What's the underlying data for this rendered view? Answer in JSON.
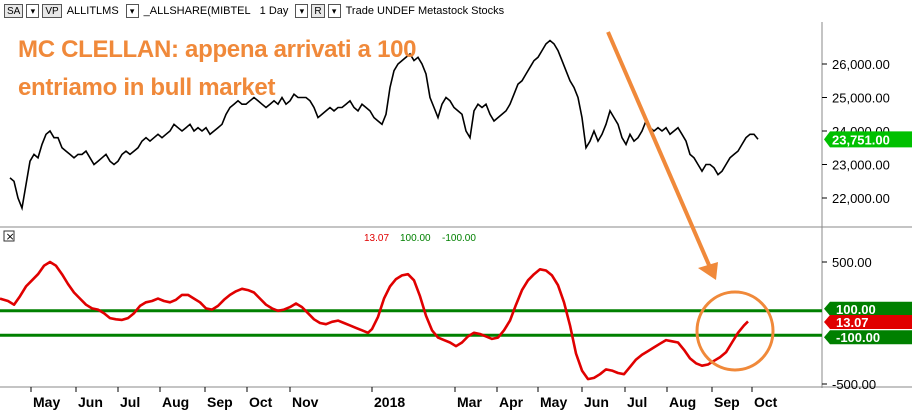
{
  "toolbar": {
    "symbol_mode": "SA",
    "vp_label": "VP",
    "symbol": "ALLITLMS",
    "series": "_ALLSHARE(MIBTEL",
    "period": "1 Day",
    "mode": "R",
    "info": "Trade  UNDEF  Metastock  Stocks"
  },
  "annotation": {
    "line1": "MC CLELLAN: appena arrivati a 100",
    "line2": "entriamo in bull market",
    "color": "#f0893a"
  },
  "price_axis": {
    "ticks": [
      "26,000.00",
      "25,000.00",
      "24,000.00",
      "23,000.00",
      "22,000.00"
    ],
    "current_label": "23,751.00",
    "current_color": "#00c000"
  },
  "osc_panel": {
    "legend": [
      "13.07",
      "100.00",
      "-100.00"
    ],
    "legend_colors": [
      "#e00000",
      "#008000",
      "#008000"
    ],
    "ticks": [
      "500.00",
      "-500.00"
    ],
    "labels": {
      "upper": "100.00",
      "current": "13.07",
      "lower": "-100.00"
    },
    "label_colors": {
      "upper": "#008000",
      "current": "#e00000",
      "lower": "#008000"
    },
    "close_glyph": "×"
  },
  "time_axis": {
    "labels": [
      "May",
      "Jun",
      "Jul",
      "Aug",
      "Sep",
      "Oct",
      "Nov",
      "2018",
      "Mar",
      "Apr",
      "May",
      "Jun",
      "Jul",
      "Aug",
      "Sep",
      "Oct"
    ]
  },
  "chart_data": {
    "type": "line",
    "title": "",
    "price_series": {
      "ylim": [
        21500,
        27000
      ],
      "points": [
        [
          0,
          22600
        ],
        [
          4,
          22500
        ],
        [
          8,
          22000
        ],
        [
          12,
          21700
        ],
        [
          16,
          22400
        ],
        [
          20,
          23100
        ],
        [
          24,
          23300
        ],
        [
          28,
          23200
        ],
        [
          32,
          23600
        ],
        [
          36,
          23900
        ],
        [
          40,
          24000
        ],
        [
          44,
          23800
        ],
        [
          48,
          23800
        ],
        [
          52,
          23500
        ],
        [
          56,
          23400
        ],
        [
          60,
          23300
        ],
        [
          64,
          23200
        ],
        [
          68,
          23300
        ],
        [
          72,
          23300
        ],
        [
          76,
          23400
        ],
        [
          80,
          23200
        ],
        [
          84,
          23000
        ],
        [
          88,
          23100
        ],
        [
          92,
          23200
        ],
        [
          96,
          23300
        ],
        [
          100,
          23100
        ],
        [
          104,
          23000
        ],
        [
          108,
          23100
        ],
        [
          112,
          23300
        ],
        [
          116,
          23400
        ],
        [
          120,
          23300
        ],
        [
          124,
          23400
        ],
        [
          128,
          23500
        ],
        [
          132,
          23700
        ],
        [
          136,
          23800
        ],
        [
          140,
          23700
        ],
        [
          144,
          23800
        ],
        [
          148,
          23900
        ],
        [
          152,
          23800
        ],
        [
          156,
          23900
        ],
        [
          160,
          24000
        ],
        [
          164,
          24200
        ],
        [
          168,
          24100
        ],
        [
          172,
          24000
        ],
        [
          176,
          24100
        ],
        [
          180,
          24200
        ],
        [
          184,
          24000
        ],
        [
          188,
          24100
        ],
        [
          192,
          24000
        ],
        [
          196,
          24100
        ],
        [
          200,
          23900
        ],
        [
          204,
          24000
        ],
        [
          208,
          24100
        ],
        [
          212,
          24200
        ],
        [
          216,
          24500
        ],
        [
          220,
          24700
        ],
        [
          224,
          24800
        ],
        [
          228,
          24900
        ],
        [
          232,
          24800
        ],
        [
          236,
          24800
        ],
        [
          240,
          24900
        ],
        [
          244,
          25000
        ],
        [
          248,
          24900
        ],
        [
          252,
          24800
        ],
        [
          256,
          24700
        ],
        [
          260,
          24800
        ],
        [
          264,
          24900
        ],
        [
          268,
          24800
        ],
        [
          272,
          25000
        ],
        [
          276,
          24800
        ],
        [
          280,
          24900
        ],
        [
          284,
          25100
        ],
        [
          288,
          25000
        ],
        [
          292,
          25000
        ],
        [
          296,
          25000
        ],
        [
          300,
          24900
        ],
        [
          304,
          24700
        ],
        [
          308,
          24400
        ],
        [
          312,
          24500
        ],
        [
          316,
          24600
        ],
        [
          320,
          24700
        ],
        [
          324,
          24600
        ],
        [
          328,
          24700
        ],
        [
          332,
          24700
        ],
        [
          336,
          24800
        ],
        [
          340,
          24900
        ],
        [
          344,
          24700
        ],
        [
          348,
          24600
        ],
        [
          352,
          24800
        ],
        [
          356,
          24700
        ],
        [
          360,
          24600
        ],
        [
          364,
          24400
        ],
        [
          368,
          24300
        ],
        [
          372,
          24200
        ],
        [
          376,
          24500
        ],
        [
          380,
          25300
        ],
        [
          384,
          25800
        ],
        [
          388,
          26000
        ],
        [
          392,
          26100
        ],
        [
          396,
          26200
        ],
        [
          400,
          26300
        ],
        [
          404,
          26100
        ],
        [
          408,
          26200
        ],
        [
          412,
          26000
        ],
        [
          416,
          25700
        ],
        [
          420,
          25000
        ],
        [
          424,
          24700
        ],
        [
          428,
          24400
        ],
        [
          432,
          24800
        ],
        [
          436,
          25000
        ],
        [
          440,
          24900
        ],
        [
          444,
          24700
        ],
        [
          448,
          24600
        ],
        [
          452,
          24500
        ],
        [
          456,
          24000
        ],
        [
          460,
          23800
        ],
        [
          464,
          24600
        ],
        [
          468,
          24800
        ],
        [
          472,
          24700
        ],
        [
          476,
          24800
        ],
        [
          480,
          24500
        ],
        [
          484,
          24300
        ],
        [
          488,
          24400
        ],
        [
          492,
          24500
        ],
        [
          496,
          24600
        ],
        [
          500,
          24800
        ],
        [
          504,
          25100
        ],
        [
          508,
          25400
        ],
        [
          512,
          25500
        ],
        [
          516,
          25700
        ],
        [
          520,
          25900
        ],
        [
          524,
          26100
        ],
        [
          528,
          26200
        ],
        [
          532,
          26400
        ],
        [
          536,
          26600
        ],
        [
          540,
          26700
        ],
        [
          544,
          26600
        ],
        [
          548,
          26400
        ],
        [
          552,
          26100
        ],
        [
          556,
          25800
        ],
        [
          560,
          25500
        ],
        [
          564,
          25300
        ],
        [
          568,
          25000
        ],
        [
          572,
          24400
        ],
        [
          576,
          23500
        ],
        [
          580,
          23700
        ],
        [
          584,
          24000
        ],
        [
          588,
          23700
        ],
        [
          592,
          23900
        ],
        [
          596,
          24200
        ],
        [
          600,
          24600
        ],
        [
          604,
          24400
        ],
        [
          608,
          24200
        ],
        [
          612,
          23800
        ],
        [
          616,
          23600
        ],
        [
          620,
          23900
        ],
        [
          624,
          23700
        ],
        [
          628,
          23800
        ],
        [
          632,
          24000
        ],
        [
          636,
          24300
        ],
        [
          640,
          24100
        ],
        [
          644,
          24000
        ],
        [
          648,
          24100
        ],
        [
          652,
          24000
        ],
        [
          656,
          24100
        ],
        [
          660,
          23900
        ],
        [
          664,
          24000
        ],
        [
          668,
          24100
        ],
        [
          672,
          23900
        ],
        [
          676,
          23700
        ],
        [
          680,
          23300
        ],
        [
          684,
          23200
        ],
        [
          688,
          23000
        ],
        [
          692,
          22800
        ],
        [
          696,
          23000
        ],
        [
          700,
          23000
        ],
        [
          704,
          22900
        ],
        [
          708,
          22700
        ],
        [
          712,
          22800
        ],
        [
          716,
          23000
        ],
        [
          720,
          23200
        ],
        [
          724,
          23300
        ],
        [
          728,
          23400
        ],
        [
          732,
          23600
        ],
        [
          736,
          23800
        ],
        [
          740,
          23900
        ],
        [
          744,
          23900
        ],
        [
          748,
          23751
        ]
      ]
    },
    "mcclellan_series": {
      "ylim": [
        -550,
        700
      ],
      "upper_band": 100,
      "lower_band": -100,
      "points": [
        [
          0,
          200
        ],
        [
          8,
          180
        ],
        [
          14,
          150
        ],
        [
          20,
          220
        ],
        [
          26,
          300
        ],
        [
          32,
          350
        ],
        [
          38,
          400
        ],
        [
          44,
          470
        ],
        [
          50,
          500
        ],
        [
          56,
          470
        ],
        [
          62,
          400
        ],
        [
          68,
          320
        ],
        [
          74,
          250
        ],
        [
          80,
          200
        ],
        [
          86,
          150
        ],
        [
          92,
          120
        ],
        [
          98,
          110
        ],
        [
          104,
          80
        ],
        [
          110,
          40
        ],
        [
          116,
          30
        ],
        [
          122,
          25
        ],
        [
          128,
          40
        ],
        [
          134,
          80
        ],
        [
          140,
          140
        ],
        [
          146,
          170
        ],
        [
          152,
          180
        ],
        [
          158,
          200
        ],
        [
          164,
          180
        ],
        [
          170,
          170
        ],
        [
          176,
          190
        ],
        [
          182,
          230
        ],
        [
          188,
          230
        ],
        [
          194,
          200
        ],
        [
          200,
          170
        ],
        [
          206,
          120
        ],
        [
          212,
          110
        ],
        [
          218,
          140
        ],
        [
          224,
          190
        ],
        [
          230,
          230
        ],
        [
          236,
          260
        ],
        [
          242,
          280
        ],
        [
          248,
          270
        ],
        [
          254,
          250
        ],
        [
          260,
          200
        ],
        [
          266,
          150
        ],
        [
          272,
          120
        ],
        [
          278,
          100
        ],
        [
          284,
          110
        ],
        [
          290,
          130
        ],
        [
          296,
          160
        ],
        [
          302,
          130
        ],
        [
          308,
          80
        ],
        [
          314,
          30
        ],
        [
          320,
          0
        ],
        [
          326,
          -10
        ],
        [
          332,
          10
        ],
        [
          338,
          20
        ],
        [
          344,
          0
        ],
        [
          350,
          -20
        ],
        [
          356,
          -40
        ],
        [
          362,
          -60
        ],
        [
          368,
          -80
        ],
        [
          372,
          -50
        ],
        [
          378,
          50
        ],
        [
          384,
          200
        ],
        [
          390,
          300
        ],
        [
          396,
          360
        ],
        [
          402,
          390
        ],
        [
          408,
          400
        ],
        [
          414,
          350
        ],
        [
          420,
          220
        ],
        [
          426,
          60
        ],
        [
          432,
          -60
        ],
        [
          438,
          -120
        ],
        [
          444,
          -140
        ],
        [
          450,
          -160
        ],
        [
          456,
          -190
        ],
        [
          462,
          -160
        ],
        [
          468,
          -110
        ],
        [
          474,
          -80
        ],
        [
          480,
          -90
        ],
        [
          486,
          -110
        ],
        [
          492,
          -130
        ],
        [
          498,
          -120
        ],
        [
          504,
          -60
        ],
        [
          510,
          20
        ],
        [
          516,
          150
        ],
        [
          522,
          270
        ],
        [
          528,
          350
        ],
        [
          534,
          400
        ],
        [
          540,
          440
        ],
        [
          546,
          430
        ],
        [
          552,
          390
        ],
        [
          558,
          310
        ],
        [
          564,
          170
        ],
        [
          570,
          -20
        ],
        [
          576,
          -250
        ],
        [
          582,
          -390
        ],
        [
          588,
          -460
        ],
        [
          594,
          -450
        ],
        [
          600,
          -420
        ],
        [
          606,
          -380
        ],
        [
          612,
          -390
        ],
        [
          618,
          -410
        ],
        [
          624,
          -420
        ],
        [
          630,
          -360
        ],
        [
          636,
          -300
        ],
        [
          642,
          -260
        ],
        [
          648,
          -230
        ],
        [
          654,
          -200
        ],
        [
          660,
          -170
        ],
        [
          666,
          -140
        ],
        [
          672,
          -150
        ],
        [
          678,
          -160
        ],
        [
          684,
          -220
        ],
        [
          690,
          -290
        ],
        [
          696,
          -330
        ],
        [
          702,
          -350
        ],
        [
          708,
          -340
        ],
        [
          714,
          -310
        ],
        [
          720,
          -280
        ],
        [
          726,
          -240
        ],
        [
          732,
          -160
        ],
        [
          738,
          -80
        ],
        [
          744,
          -20
        ],
        [
          748,
          13.07
        ]
      ]
    }
  }
}
